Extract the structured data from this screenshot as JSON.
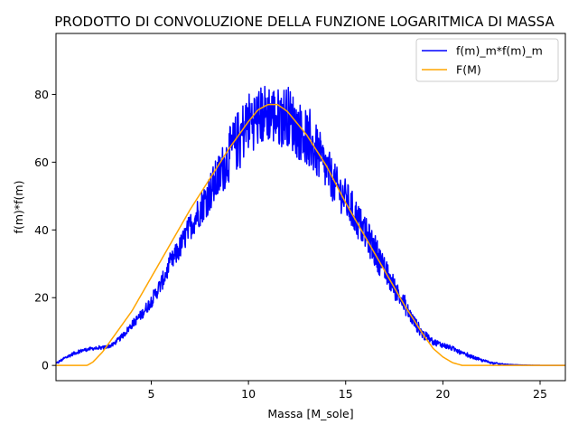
{
  "chart_data": {
    "type": "line",
    "title": "PRODOTTO DI CONVOLUZIONE DELLA FUNZIONE LOGARITMICA DI MASSA",
    "xlabel": "Massa [M_sole]",
    "ylabel": "f(m)*f(m)",
    "xlim": [
      0.1,
      26.3
    ],
    "ylim": [
      -4.5,
      98
    ],
    "xticks": [
      5,
      10,
      15,
      20,
      25
    ],
    "xtick_labels": [
      "5",
      "10",
      "15",
      "20",
      "25"
    ],
    "yticks": [
      0,
      20,
      40,
      60,
      80
    ],
    "ytick_labels": [
      "0",
      "20",
      "40",
      "60",
      "80"
    ],
    "grid": false,
    "legend_position": "upper right",
    "series": [
      {
        "name": "f(m)_m*f(m)_m",
        "color": "#0000ff",
        "style": "noisy",
        "x": [
          0.1,
          0.5,
          1.0,
          1.5,
          2.0,
          2.5,
          3.0,
          3.5,
          4.0,
          4.5,
          5.0,
          5.5,
          6.0,
          6.5,
          7.0,
          7.5,
          8.0,
          8.5,
          9.0,
          9.5,
          10.0,
          10.5,
          11.0,
          11.5,
          12.0,
          12.5,
          13.0,
          13.5,
          14.0,
          14.5,
          15.0,
          15.5,
          16.0,
          16.5,
          17.0,
          17.5,
          18.0,
          18.5,
          19.0,
          19.5,
          20.0,
          20.5,
          21.0,
          21.5,
          22.0,
          22.5,
          23.0,
          23.5,
          24.0,
          24.5,
          25.0,
          26.3
        ],
        "values": [
          0.5,
          2,
          3.5,
          4.5,
          5,
          5.2,
          6,
          8.5,
          12,
          15,
          19,
          24,
          30,
          35,
          41,
          46,
          51,
          56,
          62,
          67,
          72,
          73,
          75,
          73,
          74,
          70,
          67,
          63,
          58,
          53,
          49,
          44,
          39,
          34,
          28,
          23,
          18,
          13,
          9,
          7,
          6,
          5,
          3.5,
          2.5,
          1.5,
          0.8,
          0.4,
          0.2,
          0.1,
          0.05,
          0.02,
          0
        ],
        "amplitude": [
          0.3,
          0.5,
          0.5,
          0.5,
          0.5,
          0.5,
          0.6,
          0.8,
          1.2,
          1.5,
          2,
          2.5,
          3,
          3.5,
          4,
          5,
          6,
          7,
          8,
          9,
          9,
          9,
          9,
          9,
          9,
          9,
          8,
          8,
          7,
          6,
          6,
          6,
          5,
          5,
          4,
          3.5,
          2.5,
          2,
          1.5,
          1,
          0.8,
          0.7,
          0.6,
          0.5,
          0.4,
          0.3,
          0.2,
          0.1,
          0.05,
          0.02,
          0,
          0
        ]
      },
      {
        "name": "F(M)",
        "color": "#ffa500",
        "style": "smooth",
        "x": [
          0.1,
          1.0,
          1.7,
          2.0,
          2.5,
          3.0,
          3.5,
          4.0,
          5.0,
          6.0,
          7.0,
          8.0,
          9.0,
          10.0,
          10.5,
          11.0,
          11.5,
          12.0,
          13.0,
          14.0,
          15.0,
          16.0,
          17.0,
          18.0,
          19.0,
          19.5,
          20.0,
          20.5,
          21.0,
          22.0,
          26.3
        ],
        "values": [
          0,
          0,
          0,
          1,
          4,
          8,
          12,
          16,
          26,
          36,
          46,
          55,
          64,
          72,
          75.5,
          77,
          77,
          75,
          68,
          59,
          48,
          38,
          28,
          18,
          9,
          5,
          2.5,
          0.8,
          0,
          0,
          0
        ]
      }
    ]
  }
}
